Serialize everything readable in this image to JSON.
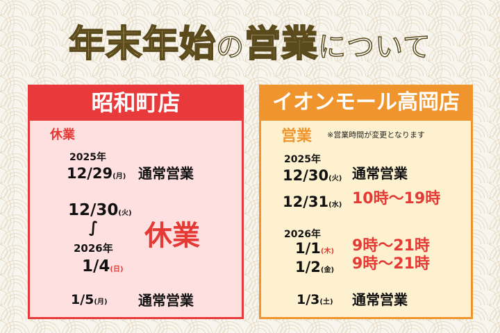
{
  "title": {
    "part1": "年末年始",
    "part2": "の",
    "part3": "営業",
    "part4": "について"
  },
  "colors": {
    "left_accent": "#e83a3a",
    "right_accent": "#f0952e",
    "hours_red": "#e53935",
    "title_gold": "#ecd28a"
  },
  "left": {
    "store": "昭和町店",
    "status_label": "休業",
    "year1": "2025年",
    "d1": "12/29",
    "d1w": "(月)",
    "d1s": "通常営業",
    "d2": "12/30",
    "d2w": "(火)",
    "range": "∫",
    "year2": "2026年",
    "d3": "1/4",
    "d3w": "(日)",
    "closed": "休業",
    "d4": "1/5",
    "d4w": "(月)",
    "d4s": "通常営業"
  },
  "right": {
    "store": "イオンモール高岡店",
    "status_label": "営業",
    "note": "※営業時間が変更となります",
    "year1": "2025年",
    "d1": "12/30",
    "d1w": "(火)",
    "d1s": "通常営業",
    "d2": "12/31",
    "d2w": "(水)",
    "d2s": "10時～19時",
    "year2": "2026年",
    "d3": "1/1",
    "d3w": "(木)",
    "d3s": "9時～21時",
    "d4": "1/2",
    "d4w": "(金)",
    "d4s": "9時～21時",
    "d5": "1/3",
    "d5w": "(土)",
    "d5s": "通常営業"
  }
}
